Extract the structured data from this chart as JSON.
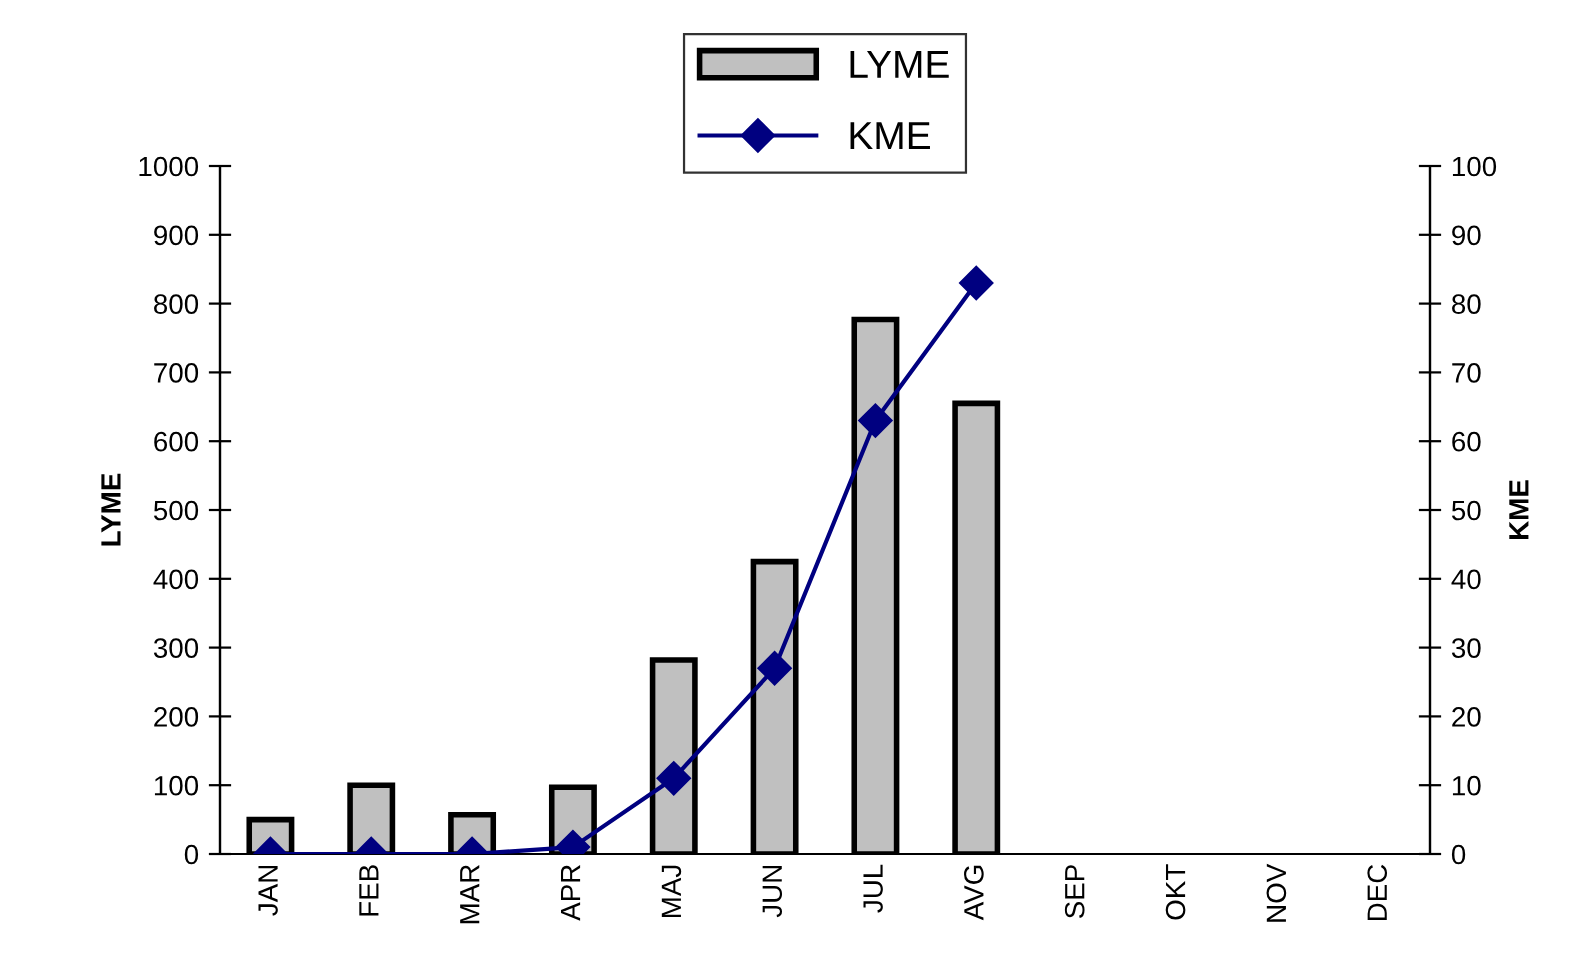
{
  "chart_data": {
    "type": "bar",
    "categories": [
      "JAN",
      "FEB",
      "MAR",
      "APR",
      "MAJ",
      "JUN",
      "JUL",
      "AVG",
      "SEP",
      "OKT",
      "NOV",
      "DEC"
    ],
    "series": [
      {
        "name": "LYME",
        "color": "#c0c0c0",
        "values": [
          50,
          100,
          57,
          97,
          282,
          425,
          777,
          655,
          null,
          null,
          null,
          null
        ]
      },
      {
        "name": "KME",
        "type": "line",
        "axis": "y2",
        "color": "#000080",
        "marker": "diamond",
        "values": [
          0,
          0,
          0,
          1,
          11,
          27,
          63,
          83,
          null,
          null,
          null,
          null
        ]
      }
    ],
    "ylabel": "LYME",
    "y2label": "KME",
    "ylim": [
      0,
      1000
    ],
    "yticks": [
      0,
      100,
      200,
      300,
      400,
      500,
      600,
      700,
      800,
      900,
      1000
    ],
    "y2lim": [
      0,
      100
    ],
    "y2ticks": [
      0,
      10,
      20,
      30,
      40,
      50,
      60,
      70,
      80,
      90,
      100
    ],
    "grid": false,
    "legend": "top"
  }
}
